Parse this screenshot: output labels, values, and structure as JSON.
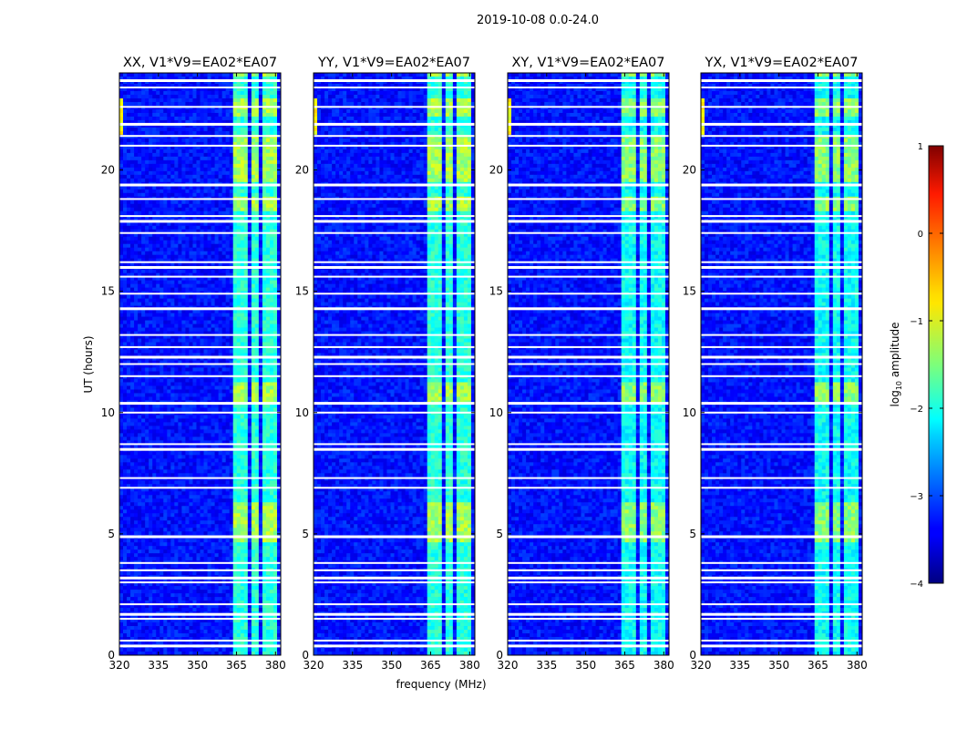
{
  "chart_data": {
    "type": "heatmap",
    "suptitle": "2019-10-08 0.0-24.0",
    "xlabel": "frequency (MHz)",
    "ylabel": "UT (hours)",
    "xlim": [
      320,
      382
    ],
    "ylim": [
      0,
      24
    ],
    "xticks": [
      "320",
      "335",
      "350",
      "365",
      "380"
    ],
    "xtick_values": [
      320,
      335,
      350,
      365,
      380
    ],
    "yticks": [
      "0",
      "5",
      "10",
      "15",
      "20"
    ],
    "ytick_values": [
      0,
      5,
      10,
      15,
      20
    ],
    "panels": [
      {
        "title": "XX, V1*V9=EA02*EA07",
        "polarization": "XX"
      },
      {
        "title": "YY, V1*V9=EA02*EA07",
        "polarization": "YY"
      },
      {
        "title": "XY, V1*V9=EA02*EA07",
        "polarization": "XY"
      },
      {
        "title": "YX, V1*V9=EA02*EA07",
        "polarization": "YX"
      }
    ],
    "colorbar": {
      "label": "log10 amplitude",
      "label_base": "log",
      "label_sub": "10",
      "label_rest": " amplitude",
      "range": [
        -4,
        1
      ],
      "ticks": [
        "1",
        "0",
        "−1",
        "−2",
        "−3",
        "−4"
      ],
      "tick_values": [
        1,
        0,
        -1,
        -2,
        -3,
        -4
      ],
      "colormap": "jet"
    },
    "background_log_amplitude": -3.3,
    "rfi_bands_mhz": [
      [
        363.5,
        367.5
      ],
      [
        368,
        370
      ],
      [
        371,
        374
      ],
      [
        375,
        377.5
      ],
      [
        378,
        381
      ]
    ],
    "rfi_band_log_amplitude": -1.6,
    "strong_rfi_intervals_ut": [
      [
        4.6,
        6.3
      ],
      [
        10.3,
        11.2
      ],
      [
        18.3,
        18.9
      ],
      [
        19.5,
        21.5
      ],
      [
        22.2,
        23.0
      ],
      [
        23.8,
        24.0
      ]
    ],
    "flagged_times_ut": [
      0.4,
      0.6,
      1.5,
      1.7,
      2.1,
      3.0,
      3.2,
      3.5,
      3.8,
      4.9,
      6.9,
      7.3,
      8.5,
      8.7,
      10.0,
      10.4,
      11.5,
      12.0,
      12.3,
      12.7,
      13.2,
      14.3,
      14.9,
      15.6,
      16.0,
      16.2,
      17.4,
      17.9,
      18.1,
      18.8,
      19.4,
      21.0,
      21.4,
      21.9,
      22.6,
      23.4,
      23.7
    ]
  }
}
